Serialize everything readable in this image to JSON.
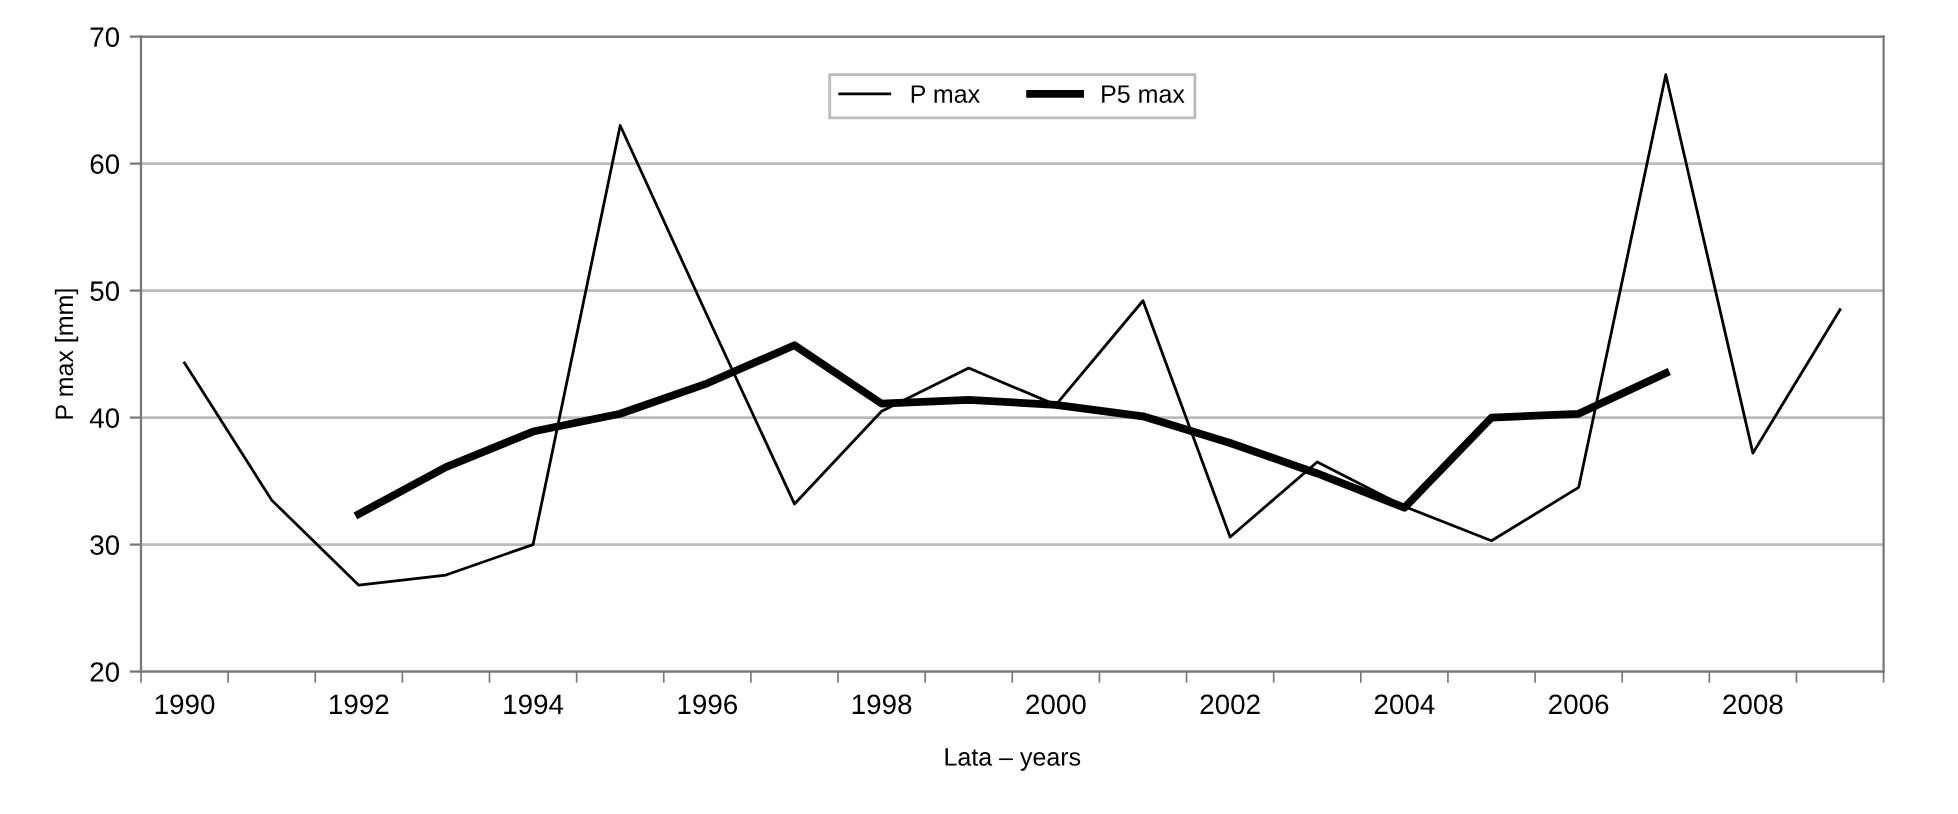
{
  "chart_data": {
    "type": "line",
    "xlabel": "Lata – years",
    "ylabel": "P max [mm]",
    "categories": [
      "1990",
      null,
      "1992",
      null,
      "1994",
      null,
      "1996",
      null,
      "1998",
      null,
      "2000",
      null,
      "2002",
      null,
      "2004",
      null,
      "2006",
      null,
      "2008",
      null
    ],
    "series": [
      {
        "name": "P max",
        "color": "#000000",
        "values": [
          44.3,
          33.5,
          26.8,
          27.6,
          30.0,
          63.0,
          48.0,
          33.2,
          40.5,
          43.9,
          41.0,
          49.2,
          30.6,
          36.5,
          33.0,
          30.3,
          34.5,
          67.0,
          37.2,
          48.5
        ]
      },
      {
        "name": "P5 max",
        "color": "#000000",
        "values": [
          null,
          null,
          32.4,
          36.1,
          38.9,
          40.3,
          42.7,
          45.7,
          41.1,
          41.4,
          41.0,
          40.1,
          38.0,
          35.6,
          32.9,
          40.0,
          40.3,
          43.5,
          null,
          null
        ]
      }
    ],
    "ylim": [
      20,
      70
    ],
    "yticks": [
      20,
      30,
      40,
      50,
      60,
      70
    ],
    "grid": "y",
    "legend": "top",
    "marker": "none",
    "line_style": "solid"
  }
}
